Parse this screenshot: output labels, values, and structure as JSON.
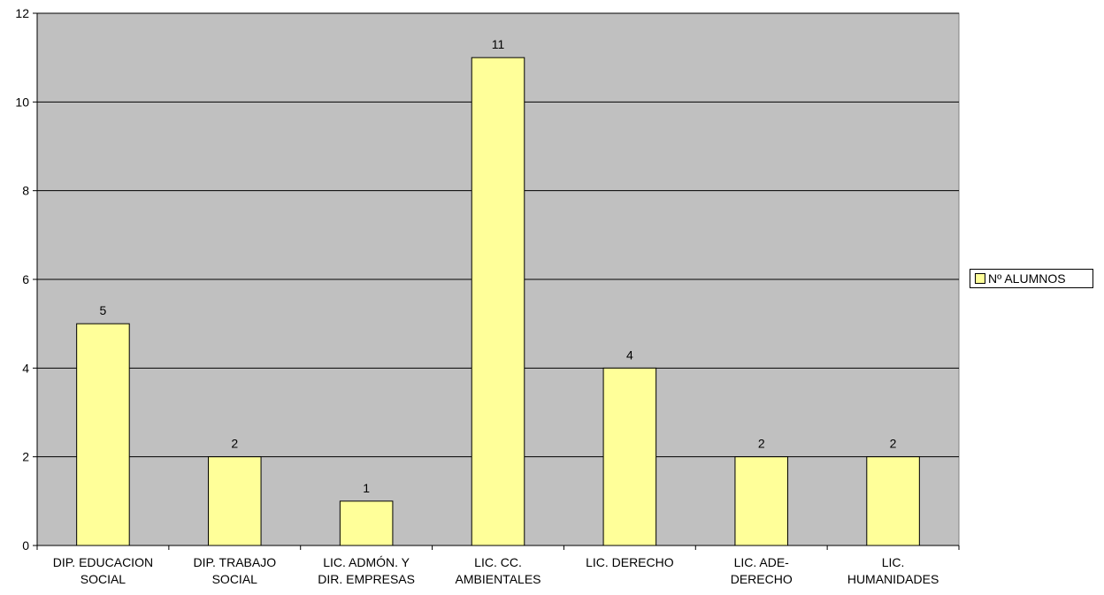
{
  "chart_data": {
    "type": "bar",
    "categories": [
      [
        "DIP. EDUCACION",
        "SOCIAL"
      ],
      [
        "DIP. TRABAJO",
        "SOCIAL"
      ],
      [
        "LIC. ADMÓN. Y",
        "DIR. EMPRESAS"
      ],
      [
        "LIC. CC.",
        "AMBIENTALES"
      ],
      [
        "LIC. DERECHO"
      ],
      [
        "LIC. ADE-",
        "DERECHO"
      ],
      [
        "LIC.",
        "HUMANIDADES"
      ]
    ],
    "series": [
      {
        "name": "Nº ALUMNOS",
        "values": [
          5,
          2,
          1,
          11,
          4,
          2,
          2
        ]
      }
    ],
    "data_labels": [
      "5",
      "2",
      "1",
      "11",
      "4",
      "2",
      "2"
    ],
    "y_ticks": [
      "0",
      "2",
      "4",
      "6",
      "8",
      "10",
      "12"
    ],
    "ylim": [
      0,
      12
    ],
    "y_tick_step": 2,
    "grid": true,
    "legend_position": "right",
    "colors": {
      "plot_background": "#c0c0c0",
      "bar_fill": "#ffff99",
      "bar_stroke": "#000000",
      "gridline": "#000000",
      "legend_swatch": "#ffff99"
    }
  }
}
